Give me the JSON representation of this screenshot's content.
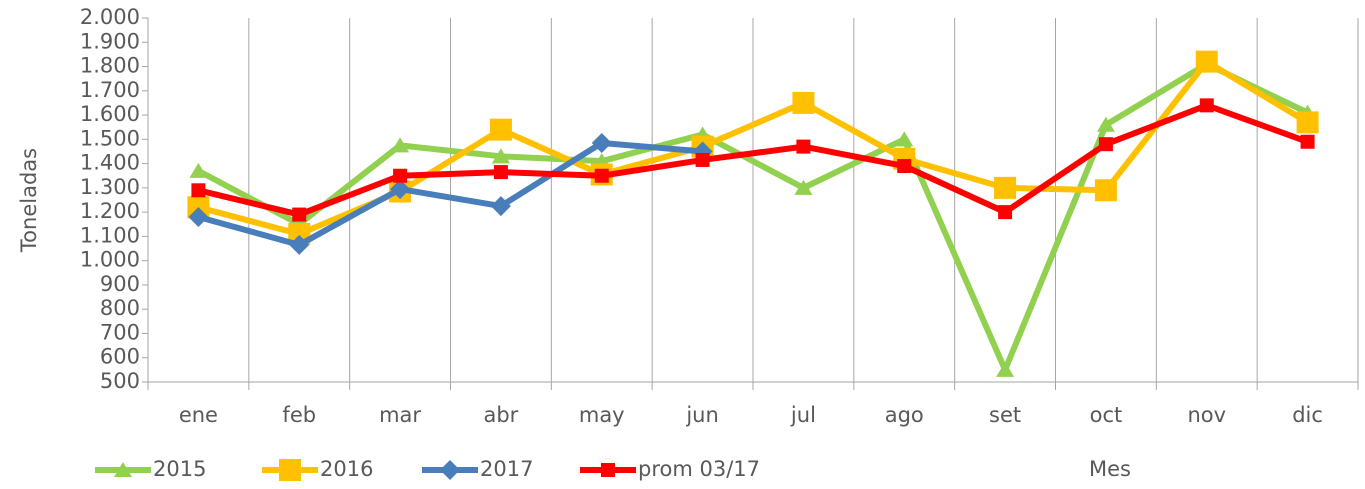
{
  "chart_data": {
    "type": "line",
    "y_label": "Toneladas",
    "x_label": "Mes",
    "categories": [
      "ene",
      "feb",
      "mar",
      "abr",
      "may",
      "jun",
      "jul",
      "ago",
      "set",
      "oct",
      "nov",
      "dic"
    ],
    "series": [
      {
        "name": "2015",
        "color": "#92d050",
        "marker": "triangle",
        "values": [
          1370,
          1150,
          1475,
          1430,
          1410,
          1520,
          1300,
          1500,
          550,
          1560,
          1810,
          1610
        ]
      },
      {
        "name": "2016",
        "color": "#ffc000",
        "marker": "square",
        "values": [
          1220,
          1110,
          1285,
          1540,
          1355,
          1470,
          1650,
          1420,
          1300,
          1290,
          1820,
          1570
        ]
      },
      {
        "name": "2017",
        "color": "#4a7ebb",
        "marker": "diamond",
        "values": [
          1180,
          1065,
          1295,
          1225,
          1485,
          1450,
          null,
          null,
          null,
          null,
          null,
          null
        ]
      },
      {
        "name": "prom 03/17",
        "color": "#ff0000",
        "marker": "small-square",
        "values": [
          1290,
          1190,
          1350,
          1365,
          1350,
          1415,
          1470,
          1390,
          1200,
          1480,
          1640,
          1490
        ]
      }
    ],
    "ylim": [
      500,
      2000
    ],
    "yticks": [
      {
        "value": 500,
        "label": "500"
      },
      {
        "value": 600,
        "label": "600"
      },
      {
        "value": 700,
        "label": "700"
      },
      {
        "value": 800,
        "label": "800"
      },
      {
        "value": 900,
        "label": "900"
      },
      {
        "value": 1000,
        "label": "1.000"
      },
      {
        "value": 1100,
        "label": "1.100"
      },
      {
        "value": 1200,
        "label": "1.200"
      },
      {
        "value": 1300,
        "label": "1.300"
      },
      {
        "value": 1400,
        "label": "1.400"
      },
      {
        "value": 1500,
        "label": "1.500"
      },
      {
        "value": 1600,
        "label": "1.600"
      },
      {
        "value": 1700,
        "label": "1.700"
      },
      {
        "value": 1800,
        "label": "1.800"
      },
      {
        "value": 1900,
        "label": "1.900"
      },
      {
        "value": 2000,
        "label": "2.000"
      }
    ],
    "grid": "x",
    "legend": "bottom-left"
  }
}
